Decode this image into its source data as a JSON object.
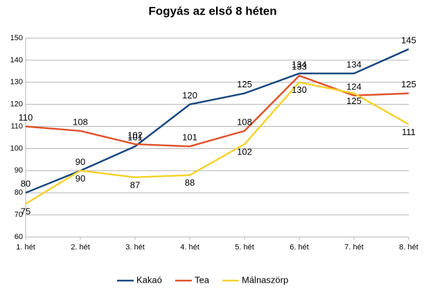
{
  "chart_data": {
    "type": "line",
    "title": "Fogyás az első 8 héten",
    "categories": [
      "1. hét",
      "2. hét",
      "3. hét",
      "4. hét",
      "5. hét",
      "6. hét",
      "7. hét",
      "8. hét"
    ],
    "series": [
      {
        "name": "Kakaó",
        "color": "#17487f",
        "values": [
          80,
          90,
          101,
          120,
          125,
          134,
          134,
          145
        ]
      },
      {
        "name": "Tea",
        "color": "#e0522b",
        "values": [
          110,
          108,
          102,
          101,
          108,
          133,
          124,
          125
        ]
      },
      {
        "name": "Málnaszörp",
        "color": "#f4d22a",
        "values": [
          75,
          90,
          87,
          88,
          102,
          130,
          125,
          111
        ]
      }
    ],
    "ylim": [
      60,
      150
    ],
    "yticks": [
      60,
      70,
      80,
      90,
      100,
      110,
      120,
      130,
      140,
      150
    ],
    "grid": true,
    "legend": "bottom"
  }
}
